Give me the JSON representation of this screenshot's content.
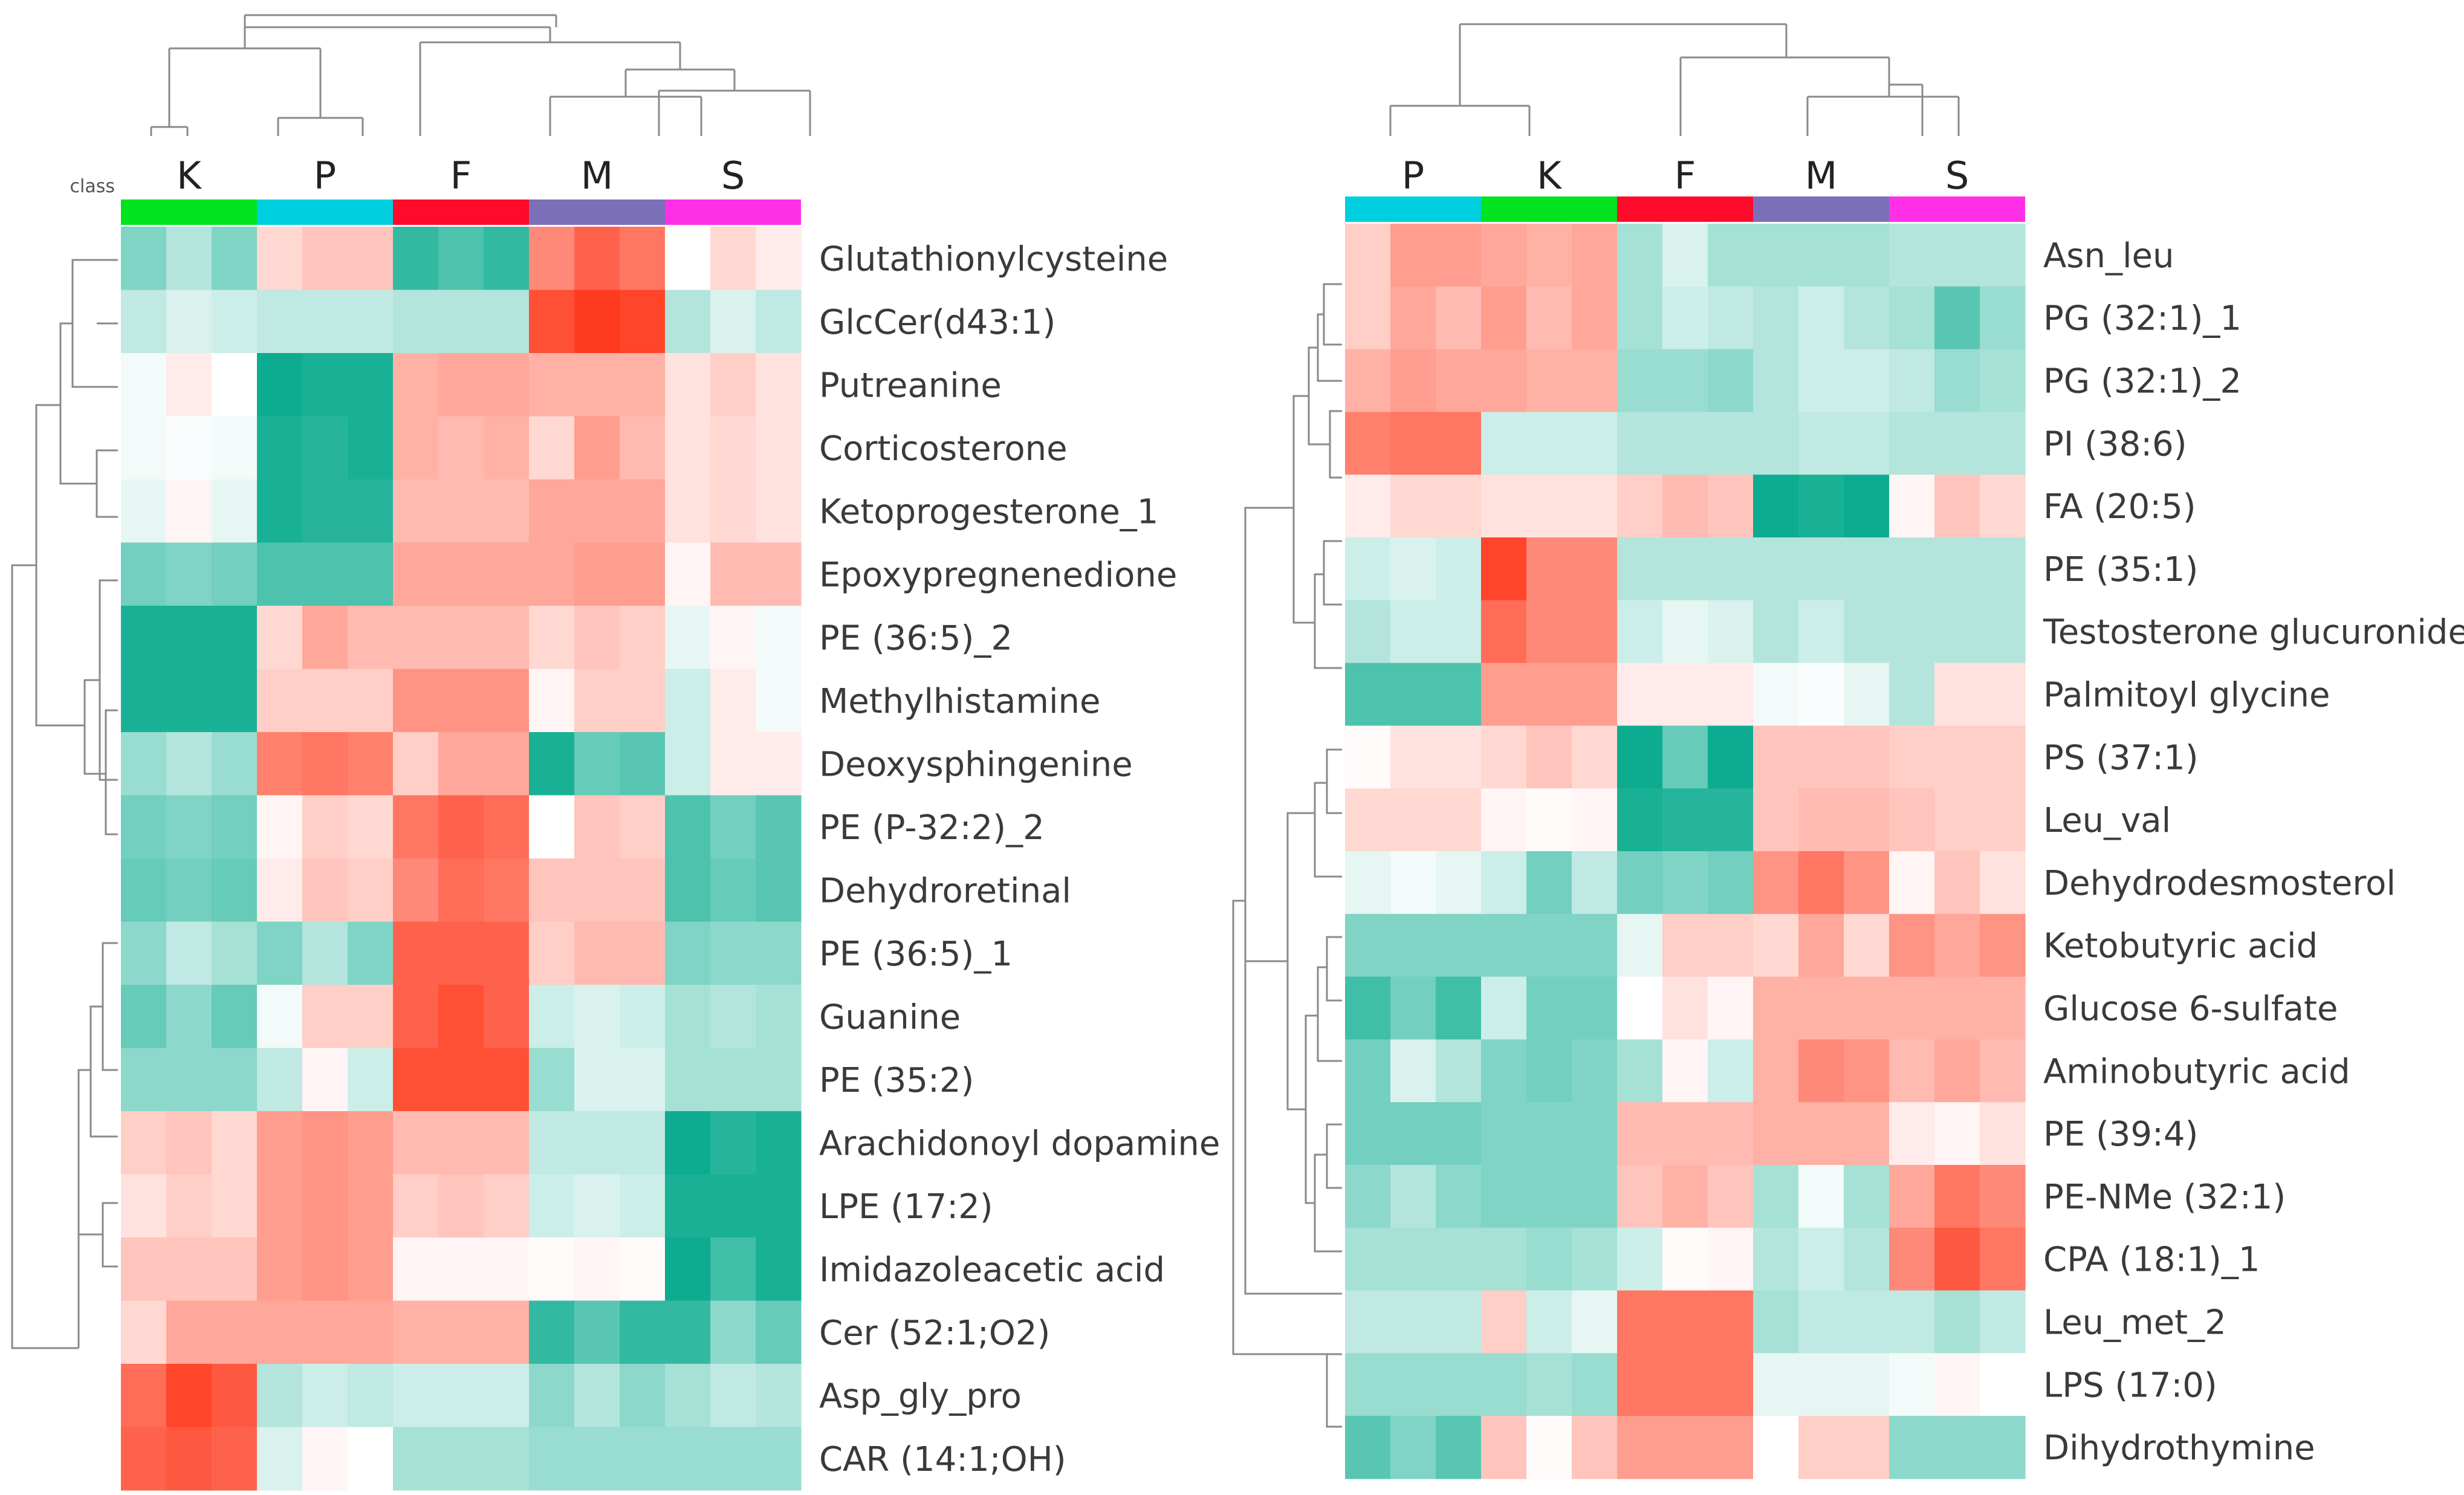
{
  "chart_data": [
    {
      "type": "heatmap",
      "class_label": "class",
      "groups": [
        {
          "name": "K",
          "color": "#00e31e"
        },
        {
          "name": "P",
          "color": "#00cfe0"
        },
        {
          "name": "F",
          "color": "#ff0a2a"
        },
        {
          "name": "M",
          "color": "#7b6fb8"
        },
        {
          "name": "S",
          "color": "#ff2fe8"
        }
      ],
      "value_range": [
        -1,
        1
      ],
      "color_low": "#00a88a",
      "color_mid": "#ffffff",
      "color_high": "#ff3b1f",
      "rows": [
        {
          "name": "Glutathionylcysteine",
          "values": [
            -0.5,
            -0.3,
            -0.5,
            0.2,
            0.3,
            0.3,
            -0.8,
            -0.7,
            -0.8,
            0.6,
            0.8,
            0.7,
            0.0,
            0.2,
            0.1
          ]
        },
        {
          "name": "GlcCer(d43:1)",
          "values": [
            -0.25,
            -0.15,
            -0.2,
            -0.25,
            -0.25,
            -0.25,
            -0.3,
            -0.3,
            -0.3,
            0.9,
            1.0,
            0.95,
            -0.3,
            -0.15,
            -0.25
          ]
        },
        {
          "name": "Putreanine",
          "values": [
            -0.05,
            0.1,
            0.0,
            -0.95,
            -0.9,
            -0.9,
            0.4,
            0.45,
            0.45,
            0.4,
            0.4,
            0.4,
            0.15,
            0.25,
            0.15
          ]
        },
        {
          "name": "Corticosterone",
          "values": [
            -0.05,
            -0.02,
            -0.05,
            -0.9,
            -0.85,
            -0.9,
            0.4,
            0.35,
            0.4,
            0.2,
            0.5,
            0.35,
            0.15,
            0.2,
            0.15
          ]
        },
        {
          "name": "Ketoprogesterone_1",
          "values": [
            -0.1,
            0.05,
            -0.1,
            -0.9,
            -0.85,
            -0.85,
            0.35,
            0.35,
            0.35,
            0.45,
            0.45,
            0.45,
            0.15,
            0.2,
            0.15
          ]
        },
        {
          "name": "Epoxypregnenedione",
          "values": [
            -0.55,
            -0.5,
            -0.55,
            -0.7,
            -0.7,
            -0.7,
            0.45,
            0.45,
            0.45,
            0.45,
            0.5,
            0.5,
            0.05,
            0.35,
            0.35
          ]
        },
        {
          "name": "PE (36:5)_2",
          "values": [
            -0.9,
            -0.9,
            -0.9,
            0.2,
            0.45,
            0.35,
            0.35,
            0.35,
            0.35,
            0.2,
            0.3,
            0.25,
            -0.1,
            0.05,
            -0.05
          ]
        },
        {
          "name": "Methylhistamine",
          "values": [
            -0.9,
            -0.9,
            -0.9,
            0.25,
            0.25,
            0.25,
            0.55,
            0.55,
            0.55,
            0.05,
            0.25,
            0.25,
            -0.2,
            0.1,
            -0.05
          ]
        },
        {
          "name": "Deoxysphingenine",
          "values": [
            -0.4,
            -0.3,
            -0.4,
            0.65,
            0.7,
            0.65,
            0.25,
            0.45,
            0.45,
            -0.9,
            -0.6,
            -0.65,
            -0.2,
            0.1,
            0.1
          ]
        },
        {
          "name": "PE (P-32:2)_2",
          "values": [
            -0.55,
            -0.5,
            -0.55,
            0.05,
            0.25,
            0.2,
            0.7,
            0.8,
            0.75,
            0.0,
            0.3,
            0.25,
            -0.7,
            -0.55,
            -0.65
          ]
        },
        {
          "name": "Dehydroretinal",
          "values": [
            -0.6,
            -0.55,
            -0.6,
            0.1,
            0.3,
            0.25,
            0.6,
            0.75,
            0.7,
            0.3,
            0.3,
            0.3,
            -0.7,
            -0.6,
            -0.65
          ]
        },
        {
          "name": "PE (36:5)_1",
          "values": [
            -0.45,
            -0.25,
            -0.35,
            -0.5,
            -0.3,
            -0.5,
            0.8,
            0.8,
            0.8,
            0.25,
            0.35,
            0.35,
            -0.5,
            -0.45,
            -0.45
          ]
        },
        {
          "name": "Guanine",
          "values": [
            -0.6,
            -0.45,
            -0.6,
            -0.05,
            0.25,
            0.25,
            0.8,
            0.9,
            0.8,
            -0.2,
            -0.15,
            -0.2,
            -0.35,
            -0.3,
            -0.35
          ]
        },
        {
          "name": "PE (35:2)",
          "values": [
            -0.45,
            -0.45,
            -0.45,
            -0.25,
            0.05,
            -0.2,
            0.9,
            0.9,
            0.9,
            -0.4,
            -0.15,
            -0.15,
            -0.35,
            -0.35,
            -0.35
          ]
        },
        {
          "name": "Arachidonoyl dopamine",
          "values": [
            0.25,
            0.3,
            0.2,
            0.5,
            0.55,
            0.5,
            0.35,
            0.35,
            0.35,
            -0.25,
            -0.25,
            -0.25,
            -0.95,
            -0.85,
            -0.9
          ]
        },
        {
          "name": "LPE (17:2)",
          "values": [
            0.15,
            0.25,
            0.2,
            0.5,
            0.55,
            0.5,
            0.25,
            0.3,
            0.25,
            -0.2,
            -0.15,
            -0.2,
            -0.9,
            -0.9,
            -0.9
          ]
        },
        {
          "name": "Imidazoleacetic acid",
          "values": [
            0.3,
            0.3,
            0.3,
            0.5,
            0.55,
            0.5,
            0.05,
            0.05,
            0.05,
            0.02,
            0.05,
            0.02,
            -0.95,
            -0.75,
            -0.9
          ]
        },
        {
          "name": "Cer (52:1;O2)",
          "values": [
            0.2,
            0.45,
            0.45,
            0.45,
            0.45,
            0.45,
            0.4,
            0.4,
            0.4,
            -0.8,
            -0.65,
            -0.8,
            -0.8,
            -0.45,
            -0.6
          ]
        },
        {
          "name": "Asp_gly_pro",
          "values": [
            0.75,
            0.95,
            0.85,
            -0.3,
            -0.2,
            -0.25,
            -0.2,
            -0.2,
            -0.2,
            -0.45,
            -0.3,
            -0.45,
            -0.35,
            -0.25,
            -0.3
          ]
        },
        {
          "name": "CAR (14:1;OH)",
          "values": [
            0.8,
            0.85,
            0.8,
            -0.15,
            0.05,
            0.0,
            -0.35,
            -0.35,
            -0.35,
            -0.4,
            -0.4,
            -0.4,
            -0.4,
            -0.4,
            -0.4
          ]
        }
      ]
    },
    {
      "type": "heatmap",
      "class_label": "",
      "groups": [
        {
          "name": "P",
          "color": "#00cfe0"
        },
        {
          "name": "K",
          "color": "#00e31e"
        },
        {
          "name": "F",
          "color": "#ff0a2a"
        },
        {
          "name": "M",
          "color": "#7b6fb8"
        },
        {
          "name": "S",
          "color": "#ff2fe8"
        }
      ],
      "value_range": [
        -1,
        1
      ],
      "color_low": "#00a88a",
      "color_mid": "#ffffff",
      "color_high": "#ff3b1f",
      "rows": [
        {
          "name": "Asn_leu",
          "values": [
            0.25,
            0.5,
            0.5,
            0.45,
            0.4,
            0.45,
            -0.35,
            -0.15,
            -0.35,
            -0.35,
            -0.35,
            -0.35,
            -0.3,
            -0.3,
            -0.3
          ]
        },
        {
          "name": "PG (32:1)_1",
          "values": [
            0.25,
            0.45,
            0.35,
            0.5,
            0.35,
            0.45,
            -0.35,
            -0.2,
            -0.25,
            -0.3,
            -0.2,
            -0.3,
            -0.35,
            -0.65,
            -0.4
          ]
        },
        {
          "name": "PG (32:1)_2",
          "values": [
            0.4,
            0.5,
            0.45,
            0.45,
            0.4,
            0.4,
            -0.4,
            -0.4,
            -0.45,
            -0.3,
            -0.2,
            -0.2,
            -0.25,
            -0.4,
            -0.35
          ]
        },
        {
          "name": "PI (38:6)",
          "values": [
            0.65,
            0.7,
            0.7,
            -0.2,
            -0.2,
            -0.2,
            -0.3,
            -0.3,
            -0.3,
            -0.3,
            -0.25,
            -0.25,
            -0.3,
            -0.3,
            -0.3
          ]
        },
        {
          "name": "FA (20:5)",
          "values": [
            0.1,
            0.2,
            0.2,
            0.15,
            0.15,
            0.15,
            0.25,
            0.35,
            0.3,
            -0.95,
            -0.9,
            -0.95,
            0.05,
            0.3,
            0.2
          ]
        },
        {
          "name": "PE (35:1)",
          "values": [
            -0.2,
            -0.15,
            -0.2,
            0.95,
            0.6,
            0.6,
            -0.3,
            -0.3,
            -0.3,
            -0.3,
            -0.3,
            -0.3,
            -0.3,
            -0.3,
            -0.3
          ]
        },
        {
          "name": "Testosterone glucuronide",
          "values": [
            -0.3,
            -0.2,
            -0.2,
            0.75,
            0.6,
            0.6,
            -0.2,
            -0.1,
            -0.15,
            -0.3,
            -0.2,
            -0.3,
            -0.3,
            -0.3,
            -0.3
          ]
        },
        {
          "name": "Palmitoyl glycine",
          "values": [
            -0.7,
            -0.7,
            -0.7,
            0.5,
            0.5,
            0.5,
            0.1,
            0.1,
            0.1,
            -0.05,
            -0.02,
            -0.1,
            -0.3,
            0.15,
            0.15
          ]
        },
        {
          "name": "PS (37:1)",
          "values": [
            0.02,
            0.15,
            0.15,
            0.2,
            0.3,
            0.2,
            -0.95,
            -0.6,
            -0.95,
            0.3,
            0.3,
            0.3,
            0.25,
            0.25,
            0.25
          ]
        },
        {
          "name": "Leu_val",
          "values": [
            0.2,
            0.2,
            0.2,
            0.05,
            0.02,
            0.05,
            -0.9,
            -0.85,
            -0.85,
            0.3,
            0.35,
            0.35,
            0.3,
            0.25,
            0.25
          ]
        },
        {
          "name": "Dehydrodesmosterol",
          "values": [
            -0.1,
            -0.05,
            -0.1,
            -0.2,
            -0.55,
            -0.25,
            -0.55,
            -0.5,
            -0.55,
            0.55,
            0.7,
            0.55,
            0.05,
            0.3,
            0.15
          ]
        },
        {
          "name": "Ketobutyric acid",
          "values": [
            -0.5,
            -0.5,
            -0.5,
            -0.5,
            -0.5,
            -0.5,
            -0.1,
            0.25,
            0.25,
            0.2,
            0.45,
            0.2,
            0.55,
            0.45,
            0.55
          ]
        },
        {
          "name": "Glucose 6-sulfate",
          "values": [
            -0.75,
            -0.55,
            -0.75,
            -0.2,
            -0.55,
            -0.55,
            0.0,
            0.15,
            0.05,
            0.4,
            0.4,
            0.4,
            0.4,
            0.4,
            0.4
          ]
        },
        {
          "name": "Aminobutyric acid",
          "values": [
            -0.55,
            -0.15,
            -0.3,
            -0.5,
            -0.55,
            -0.5,
            -0.35,
            0.05,
            -0.2,
            0.4,
            0.6,
            0.55,
            0.35,
            0.45,
            0.35
          ]
        },
        {
          "name": "PE (39:4)",
          "values": [
            -0.55,
            -0.55,
            -0.55,
            -0.5,
            -0.5,
            -0.5,
            0.35,
            0.35,
            0.35,
            0.4,
            0.4,
            0.4,
            0.1,
            0.05,
            0.15
          ]
        },
        {
          "name": "PE-NMe (32:1)",
          "values": [
            -0.45,
            -0.3,
            -0.45,
            -0.5,
            -0.5,
            -0.5,
            0.3,
            0.4,
            0.3,
            -0.35,
            -0.05,
            -0.35,
            0.45,
            0.7,
            0.6
          ]
        },
        {
          "name": "CPA (18:1)_1",
          "values": [
            -0.35,
            -0.35,
            -0.35,
            -0.35,
            -0.4,
            -0.35,
            -0.2,
            0.02,
            0.05,
            -0.3,
            -0.2,
            -0.3,
            0.6,
            0.85,
            0.7
          ]
        },
        {
          "name": "Leu_met_2",
          "values": [
            -0.25,
            -0.25,
            -0.25,
            0.25,
            -0.2,
            -0.1,
            0.7,
            0.7,
            0.7,
            -0.35,
            -0.25,
            -0.25,
            -0.25,
            -0.35,
            -0.25
          ]
        },
        {
          "name": "LPS (17:0)",
          "values": [
            -0.4,
            -0.4,
            -0.4,
            -0.4,
            -0.35,
            -0.4,
            0.7,
            0.7,
            0.7,
            -0.1,
            -0.1,
            -0.1,
            -0.05,
            0.05,
            0.0
          ]
        },
        {
          "name": "Dihydrothymine",
          "values": [
            -0.65,
            -0.5,
            -0.65,
            0.3,
            0.02,
            0.3,
            0.5,
            0.5,
            0.5,
            0.0,
            0.25,
            0.25,
            -0.45,
            -0.45,
            -0.45
          ]
        }
      ]
    }
  ]
}
